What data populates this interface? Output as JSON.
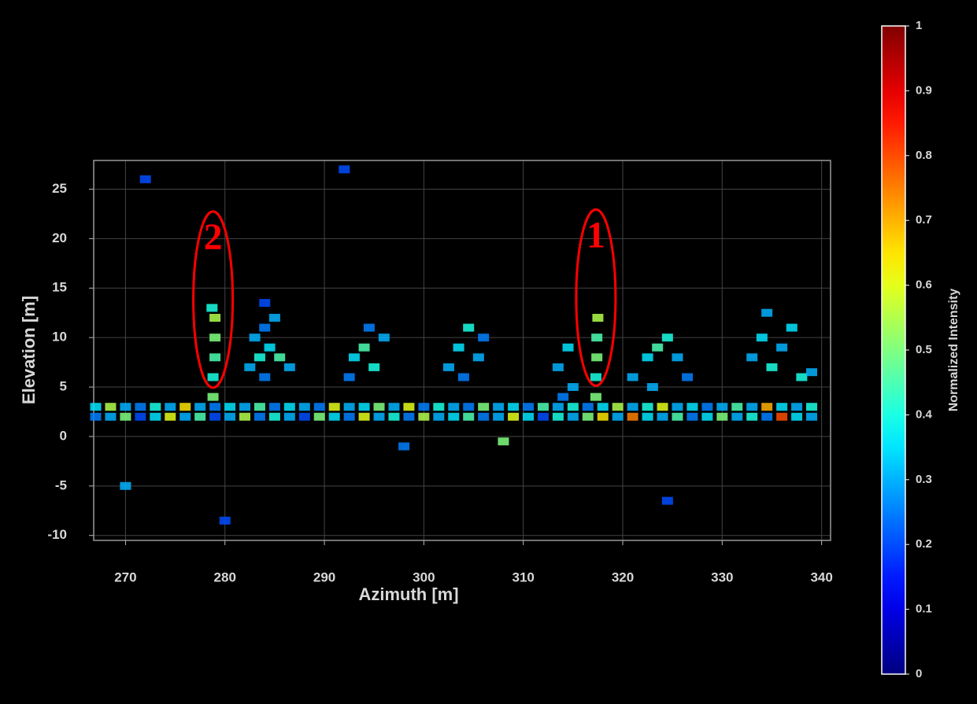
{
  "chart_data": {
    "type": "scatter",
    "xlabel": "Azimuth [m]",
    "ylabel": "Elevation [m]",
    "xlim": [
      266.8,
      340.9
    ],
    "ylim": [
      -10.5,
      27.9
    ],
    "xticks": [
      270,
      280,
      290,
      300,
      310,
      320,
      330,
      340
    ],
    "yticks": [
      -10,
      -5,
      0,
      5,
      10,
      15,
      20,
      25
    ],
    "grid": true,
    "colormap": "jet",
    "colorbar": {
      "label": "Normalized Intensity",
      "lim": [
        0,
        1
      ],
      "ticks": [
        0,
        0.1,
        0.2,
        0.3,
        0.4,
        0.5,
        0.6,
        0.7,
        0.8,
        0.9,
        1
      ]
    },
    "annotations": [
      {
        "text": "2",
        "x": 278.8,
        "y": 19.8,
        "color": "#ff0000"
      },
      {
        "text": "1",
        "x": 317.3,
        "y": 20,
        "color": "#ff0000"
      }
    ],
    "x": [
      267,
      268.5,
      270,
      271.5,
      273,
      274.5,
      276,
      277.5,
      279,
      280.5,
      282,
      283.5,
      285,
      286.5,
      288,
      289.5,
      291,
      292.5,
      294,
      295.5,
      297,
      298.5,
      300,
      301.5,
      303,
      304.5,
      306,
      307.5,
      309,
      310.5,
      312,
      313.5,
      315,
      316.5,
      318,
      319.5,
      321,
      322.5,
      324,
      325.5,
      327,
      328.5,
      330,
      331.5,
      333,
      334.5,
      336,
      337.5,
      339,
      267,
      268.5,
      270,
      271.5,
      273,
      274.5,
      276,
      277.5,
      279,
      280.5,
      282,
      283.5,
      285,
      286.5,
      288,
      289.5,
      291,
      292.5,
      294,
      295.5,
      297,
      298.5,
      300,
      301.5,
      303,
      304.5,
      306,
      307.5,
      309,
      310.5,
      312,
      313.5,
      315,
      316.5,
      318,
      319.5,
      321,
      322.5,
      324,
      325.5,
      327,
      328.5,
      330,
      331.5,
      333,
      334.5,
      336,
      337.5,
      339,
      278.8,
      278.8,
      279,
      279,
      279,
      278.7,
      282.5,
      283.5,
      284.5,
      285.5,
      283,
      284,
      285,
      284,
      286.5,
      284,
      293,
      294,
      295,
      296,
      294.5,
      292.5,
      302.5,
      303.5,
      304.5,
      305.5,
      304,
      306,
      313.5,
      314.5,
      315,
      314,
      317.3,
      317.3,
      317.4,
      317.4,
      317.5,
      321,
      322.5,
      323.5,
      324.5,
      325.5,
      326.5,
      323,
      333,
      334,
      335,
      336,
      337,
      338,
      339,
      334.5,
      270,
      292,
      298,
      324.5,
      280,
      272,
      308
    ],
    "y": [
      2,
      2,
      2,
      2,
      2,
      2,
      2,
      2,
      2,
      2,
      2,
      2,
      2,
      2,
      2,
      2,
      2,
      2,
      2,
      2,
      2,
      2,
      2,
      2,
      2,
      2,
      2,
      2,
      2,
      2,
      2,
      2,
      2,
      2,
      2,
      2,
      2,
      2,
      2,
      2,
      2,
      2,
      2,
      2,
      2,
      2,
      2,
      2,
      2,
      3,
      3,
      3,
      3,
      3,
      3,
      3,
      3,
      3,
      3,
      3,
      3,
      3,
      3,
      3,
      3,
      3,
      3,
      3,
      3,
      3,
      3,
      3,
      3,
      3,
      3,
      3,
      3,
      3,
      3,
      3,
      3,
      3,
      3,
      3,
      3,
      3,
      3,
      3,
      3,
      3,
      3,
      3,
      3,
      3,
      3,
      3,
      3,
      3,
      4,
      6,
      8,
      10,
      12,
      13,
      7,
      8,
      9,
      8,
      10,
      11,
      12,
      13.5,
      7,
      6,
      8,
      9,
      7,
      10,
      11,
      6,
      7,
      9,
      11,
      8,
      6,
      10,
      7,
      9,
      5,
      4,
      4,
      6,
      8,
      10,
      12,
      6,
      8,
      9,
      10,
      8,
      6,
      5,
      8,
      10,
      7,
      9,
      11,
      6,
      6.5,
      12.5,
      -5,
      27,
      -1,
      -6.5,
      -8.5,
      26,
      -0.5
    ],
    "values": [
      0.25,
      0.3,
      0.5,
      0.2,
      0.35,
      0.6,
      0.3,
      0.45,
      0.2,
      0.3,
      0.55,
      0.25,
      0.4,
      0.3,
      0.2,
      0.5,
      0.35,
      0.25,
      0.6,
      0.3,
      0.4,
      0.25,
      0.55,
      0.3,
      0.35,
      0.45,
      0.25,
      0.3,
      0.6,
      0.35,
      0.2,
      0.4,
      0.3,
      0.5,
      0.65,
      0.3,
      0.75,
      0.35,
      0.3,
      0.45,
      0.25,
      0.35,
      0.5,
      0.3,
      0.4,
      0.25,
      0.8,
      0.35,
      0.3,
      0.35,
      0.55,
      0.3,
      0.25,
      0.4,
      0.3,
      0.65,
      0.3,
      0.25,
      0.35,
      0.3,
      0.45,
      0.25,
      0.35,
      0.3,
      0.25,
      0.6,
      0.3,
      0.35,
      0.5,
      0.3,
      0.6,
      0.25,
      0.4,
      0.3,
      0.25,
      0.5,
      0.3,
      0.35,
      0.25,
      0.45,
      0.3,
      0.4,
      0.25,
      0.35,
      0.55,
      0.3,
      0.4,
      0.6,
      0.3,
      0.35,
      0.25,
      0.3,
      0.45,
      0.3,
      0.7,
      0.35,
      0.3,
      0.4,
      0.5,
      0.4,
      0.45,
      0.5,
      0.55,
      0.4,
      0.3,
      0.4,
      0.35,
      0.45,
      0.3,
      0.25,
      0.3,
      0.2,
      0.3,
      0.25,
      0.35,
      0.45,
      0.4,
      0.3,
      0.25,
      0.25,
      0.3,
      0.35,
      0.4,
      0.3,
      0.25,
      0.25,
      0.3,
      0.35,
      0.3,
      0.25,
      0.5,
      0.4,
      0.5,
      0.45,
      0.55,
      0.3,
      0.35,
      0.45,
      0.4,
      0.3,
      0.25,
      0.3,
      0.3,
      0.35,
      0.4,
      0.3,
      0.35,
      0.4,
      0.3,
      0.3,
      0.3,
      0.2,
      0.25,
      0.2,
      0.2,
      0.2,
      0.5
    ]
  }
}
